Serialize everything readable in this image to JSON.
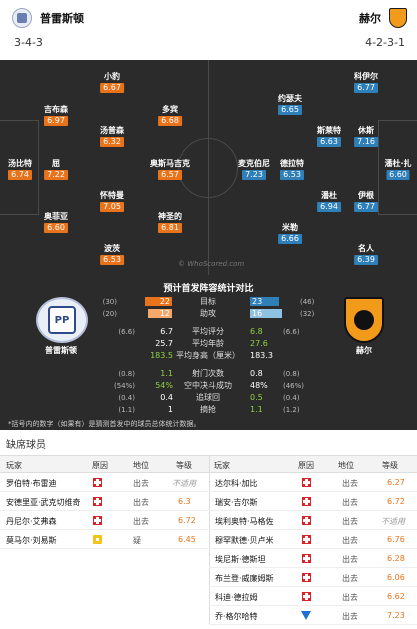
{
  "header": {
    "home": {
      "name": "普雷斯顿",
      "formation": "3-4-3"
    },
    "away": {
      "name": "赫尔",
      "formation": "4-2-3-1"
    }
  },
  "pitch": {
    "watermark": "© WhoScored.com",
    "home_players": [
      {
        "name": "小豹",
        "rating": "6.67"
      },
      {
        "name": "吉布森",
        "rating": "6.97"
      },
      {
        "name": "多宾",
        "rating": "6.68"
      },
      {
        "name": "汤普森",
        "rating": "6.32"
      },
      {
        "name": "汤比特",
        "rating": "6.74"
      },
      {
        "name": "屈",
        "rating": "7.22"
      },
      {
        "name": "奥斯马吉克",
        "rating": "6.57"
      },
      {
        "name": "怀特曼",
        "rating": "7.05"
      },
      {
        "name": "奥菲亚",
        "rating": "6.60"
      },
      {
        "name": "神圣的",
        "rating": "6.81"
      },
      {
        "name": "波茨",
        "rating": "6.53"
      }
    ],
    "away_players": [
      {
        "name": "科伊尔",
        "rating": "6.77"
      },
      {
        "name": "约瑟夫",
        "rating": "6.65"
      },
      {
        "name": "斯莱特",
        "rating": "6.63"
      },
      {
        "name": "休斯",
        "rating": "7.16"
      },
      {
        "name": "麦克伯尼",
        "rating": "7.23"
      },
      {
        "name": "德拉特",
        "rating": "6.53"
      },
      {
        "name": "潘杜",
        "rating": "6.94"
      },
      {
        "name": "伊根",
        "rating": "6.77"
      },
      {
        "name": "潘杜·扎",
        "rating": "6.60"
      },
      {
        "name": "米勒",
        "rating": "6.66"
      },
      {
        "name": "名人",
        "rating": "6.39"
      }
    ]
  },
  "stats": {
    "title": "预计首发阵容统计对比",
    "home_crest_text": "PP",
    "home_label": "普雷斯顿",
    "away_label": "赫尔",
    "goals": {
      "label": "目标",
      "home_pre": "(30)",
      "home": "22",
      "away": "23",
      "away_post": "(46)",
      "home_frac": 0.49,
      "away_frac": 0.51
    },
    "assists": {
      "label": "助攻",
      "home_pre": "(20)",
      "home": "12",
      "away": "16",
      "away_post": "(32)",
      "home_frac": 0.43,
      "away_frac": 0.57
    },
    "rows": [
      {
        "label": "平均评分",
        "home_pre": "(6.6)",
        "home": "6.7",
        "away": "6.8",
        "away_post": "(6.6)"
      },
      {
        "label": "平均年龄",
        "home_pre": "",
        "home": "25.7",
        "away": "27.6",
        "away_post": ""
      },
      {
        "label": "平均身高（厘米）",
        "home_pre": "",
        "home": "183.5",
        "away": "183.3",
        "away_post": ""
      },
      {
        "label": "射门次数",
        "home_pre": "(0.8)",
        "home": "1.1",
        "away": "0.8",
        "away_post": "(0.8)"
      },
      {
        "label": "空中决斗成功",
        "home_pre": "(54%)",
        "home": "54%",
        "away": "48%",
        "away_post": "(46%)"
      },
      {
        "label": "追球回",
        "home_pre": "(0.4)",
        "home": "0.4",
        "away": "0.5",
        "away_post": "(0.4)"
      },
      {
        "label": "摘抢",
        "home_pre": "(1.1)",
        "home": "1",
        "away": "1.1",
        "away_post": "(1.2)"
      }
    ],
    "footnote": "*括号内的数字（如果有）是猜测首发中的球员总体统计数据。"
  },
  "absentees": {
    "title": "缺席球员",
    "headers": {
      "player": "玩家",
      "reason": "原因",
      "status": "地位",
      "rating": "等级"
    },
    "home": [
      {
        "name": "罗伯特·布雷迪",
        "icon": "injury",
        "status": "出去",
        "rating": "不适用",
        "na": true
      },
      {
        "name": "安德里亚·武克切维奇",
        "icon": "injury",
        "status": "出去",
        "rating": "6.3",
        "na": false
      },
      {
        "name": "丹尼尔·艾弗森",
        "icon": "injury",
        "status": "出去",
        "rating": "6.72",
        "na": false
      },
      {
        "name": "莫马尔·刘易斯",
        "icon": "doubt",
        "status": "疑",
        "rating": "6.45",
        "na": false
      }
    ],
    "away": [
      {
        "name": "达尔科·加比",
        "icon": "injury",
        "status": "出去",
        "rating": "6.27",
        "na": false
      },
      {
        "name": "瑞安·吉尔斯",
        "icon": "injury",
        "status": "出去",
        "rating": "6.72",
        "na": false
      },
      {
        "name": "埃利奥特·马格佐",
        "icon": "injury",
        "status": "出去",
        "rating": "不适用",
        "na": true
      },
      {
        "name": "穆罕默德·贝卢米",
        "icon": "injury",
        "status": "出去",
        "rating": "6.76",
        "na": false
      },
      {
        "name": "埃尼斯·德斯坦",
        "icon": "injury",
        "status": "出去",
        "rating": "6.28",
        "na": false
      },
      {
        "name": "布兰登·威廉姆斯",
        "icon": "injury",
        "status": "出去",
        "rating": "6.06",
        "na": false
      },
      {
        "name": "科迪·德拉姆",
        "icon": "injury",
        "status": "出去",
        "rating": "6.62",
        "na": false
      },
      {
        "name": "乔·格尔哈特",
        "icon": "other",
        "status": "出去",
        "rating": "7.23",
        "na": false
      }
    ]
  }
}
